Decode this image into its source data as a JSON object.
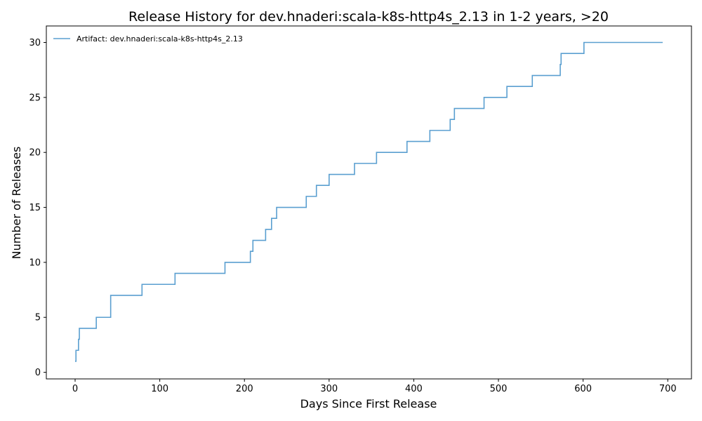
{
  "chart_data": {
    "type": "line",
    "step": true,
    "title": "Release History for dev.hnaderi:scala-k8s-http4s_2.13 in 1-2 years, >20",
    "xlabel": "Days Since First Release",
    "ylabel": "Number of Releases",
    "xlim": [
      -34,
      728
    ],
    "ylim": [
      -0.6,
      31.5
    ],
    "xticks": [
      0,
      100,
      200,
      300,
      400,
      500,
      600,
      700
    ],
    "yticks": [
      0,
      5,
      10,
      15,
      20,
      25,
      30
    ],
    "grid": false,
    "legend_position": "top-left",
    "color": "#5a9fd0",
    "series": [
      {
        "name": "Artifact: dev.hnaderi:scala-k8s-http4s_2.13",
        "x": [
          0,
          1,
          4,
          5,
          25,
          42,
          79,
          118,
          177,
          207,
          210,
          225,
          232,
          238,
          273,
          285,
          300,
          330,
          356,
          392,
          419,
          443,
          448,
          483,
          510,
          540,
          573,
          574,
          601,
          694
        ],
        "y": [
          1,
          2,
          3,
          4,
          5,
          7,
          8,
          9,
          10,
          11,
          12,
          13,
          14,
          15,
          16,
          17,
          18,
          19,
          20,
          21,
          22,
          23,
          24,
          25,
          26,
          27,
          28,
          29,
          30,
          30
        ]
      }
    ]
  }
}
